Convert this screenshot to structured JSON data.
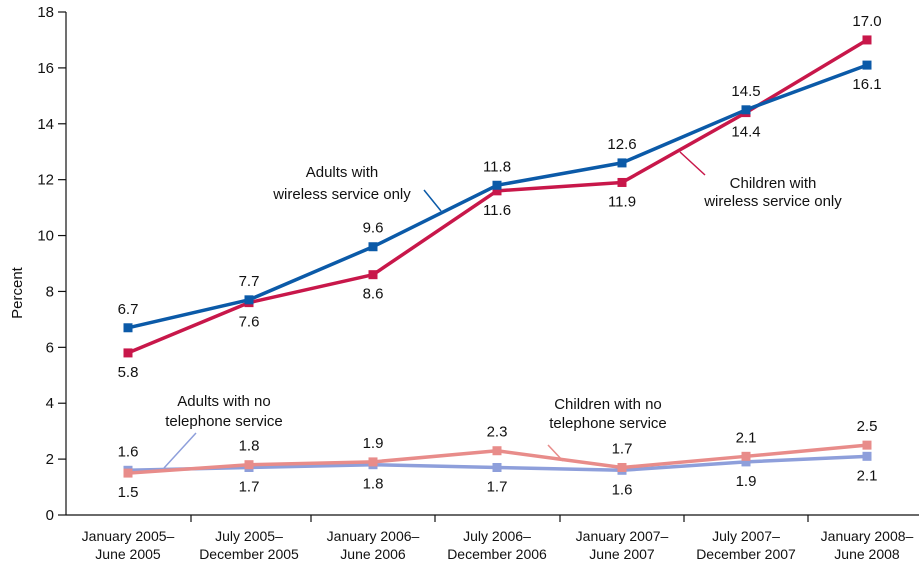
{
  "chart_data": {
    "type": "line",
    "title": "",
    "xlabel": "",
    "ylabel": "Percent",
    "ylim": [
      0,
      18
    ],
    "yticks": [
      0,
      2,
      4,
      6,
      8,
      10,
      12,
      14,
      16,
      18
    ],
    "grid": false,
    "categories": [
      [
        "January 2005–",
        "June 2005"
      ],
      [
        "July 2005–",
        "December 2005"
      ],
      [
        "January 2006–",
        "June 2006"
      ],
      [
        "July 2006–",
        "December 2006"
      ],
      [
        "January 2007–",
        "June 2007"
      ],
      [
        "July 2007–",
        "December 2007"
      ],
      [
        "January 2008–",
        "June 2008"
      ]
    ],
    "series": [
      {
        "id": "adults-wireless",
        "name": [
          "Adults with",
          "wireless service only"
        ],
        "color": "#0b5aa8",
        "values": [
          6.7,
          7.7,
          9.6,
          11.8,
          12.6,
          14.5,
          16.1
        ],
        "labels": [
          "6.7",
          "7.7",
          "9.6",
          "11.8",
          "12.6",
          "14.5",
          "16.1"
        ],
        "label_pos": [
          "above",
          "above",
          "above",
          "above",
          "above",
          "above",
          "below"
        ]
      },
      {
        "id": "children-wireless",
        "name": [
          "Children with",
          "wireless service only"
        ],
        "color": "#c8174a",
        "values": [
          5.8,
          7.6,
          8.6,
          11.6,
          11.9,
          14.4,
          17.0
        ],
        "labels": [
          "5.8",
          "7.6",
          "8.6",
          "11.6",
          "11.9",
          "14.4",
          "17.0"
        ],
        "label_pos": [
          "below",
          "below",
          "below",
          "below",
          "below",
          "below",
          "above"
        ]
      },
      {
        "id": "adults-no-phone",
        "name": [
          "Adults with no",
          "telephone service"
        ],
        "color": "#8e9fdb",
        "values": [
          1.6,
          1.7,
          1.8,
          1.7,
          1.6,
          1.9,
          2.1
        ],
        "labels": [
          "1.6",
          "1.7",
          "1.8",
          "1.7",
          "1.6",
          "1.9",
          "2.1"
        ],
        "label_pos": [
          "above",
          "below",
          "below",
          "below",
          "below",
          "below",
          "below"
        ]
      },
      {
        "id": "children-no-phone",
        "name": [
          "Children with no",
          "telephone service"
        ],
        "color": "#e88c8a",
        "values": [
          1.5,
          1.8,
          1.9,
          2.3,
          1.7,
          2.1,
          2.5
        ],
        "labels": [
          "1.5",
          "1.8",
          "1.9",
          "2.3",
          "1.7",
          "2.1",
          "2.5"
        ],
        "label_pos": [
          "below",
          "above",
          "above",
          "above",
          "above",
          "above",
          "above"
        ]
      }
    ],
    "annotations": [
      {
        "series": "adults-wireless",
        "text": [
          "Adults with",
          "wireless service only"
        ]
      },
      {
        "series": "children-wireless",
        "text": [
          "Children with",
          "wireless service only"
        ]
      },
      {
        "series": "adults-no-phone",
        "text": [
          "Adults with no",
          "telephone service"
        ]
      },
      {
        "series": "children-no-phone",
        "text": [
          "Children with no",
          "telephone service"
        ]
      }
    ]
  }
}
